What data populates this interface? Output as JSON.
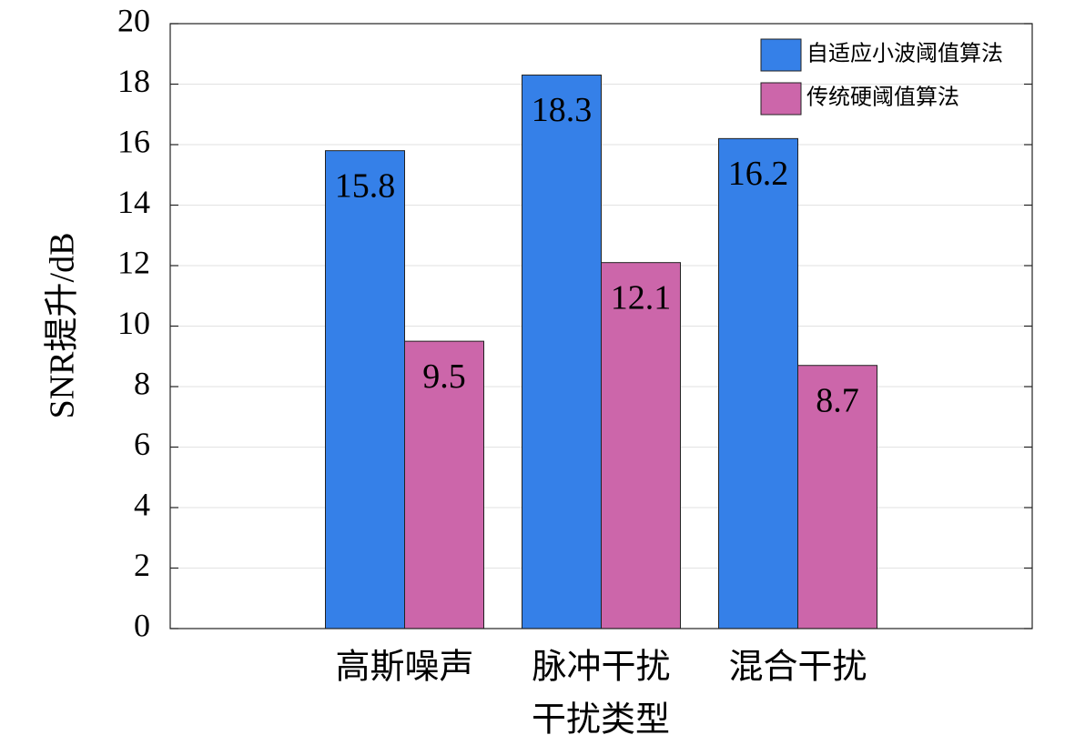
{
  "chart_data": {
    "type": "bar",
    "x_label": "干扰类型",
    "y_label": "SNR提升/dB",
    "categories": [
      "高斯噪声",
      "脉冲干扰",
      "混合干扰"
    ],
    "series": [
      {
        "name": "自适应小波阈值算法",
        "color": "#3580e8",
        "values": [
          15.8,
          18.3,
          16.2
        ]
      },
      {
        "name": "传统硬阈值算法",
        "color": "#cc66aa",
        "values": [
          9.5,
          12.1,
          8.7
        ]
      }
    ],
    "ylim": [
      0,
      20
    ],
    "yticks": [
      0,
      2,
      4,
      6,
      8,
      10,
      12,
      14,
      16,
      18,
      20
    ],
    "grid": true,
    "legend": "upper right"
  }
}
